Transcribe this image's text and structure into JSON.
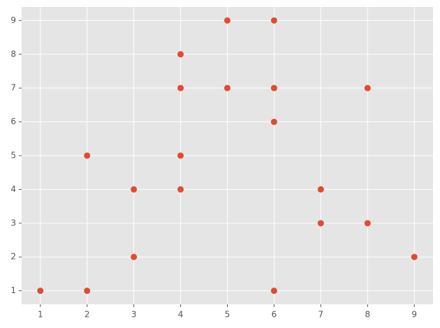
{
  "chart_data": {
    "type": "scatter",
    "x": [
      1,
      2,
      2,
      3,
      3,
      4,
      4,
      4,
      4,
      5,
      5,
      6,
      6,
      6,
      6,
      7,
      7,
      8,
      8,
      9
    ],
    "values": [
      1,
      1,
      5,
      4,
      2,
      8,
      7,
      5,
      4,
      9,
      7,
      9,
      7,
      6,
      1,
      4,
      3,
      7,
      3,
      2
    ],
    "color": "#E24A33",
    "xlim": [
      0.6,
      9.4
    ],
    "ylim": [
      0.6,
      9.4
    ],
    "xticks": [
      1,
      2,
      3,
      4,
      5,
      6,
      7,
      8,
      9
    ],
    "yticks": [
      1,
      2,
      3,
      4,
      5,
      6,
      7,
      8,
      9
    ],
    "grid": true
  }
}
